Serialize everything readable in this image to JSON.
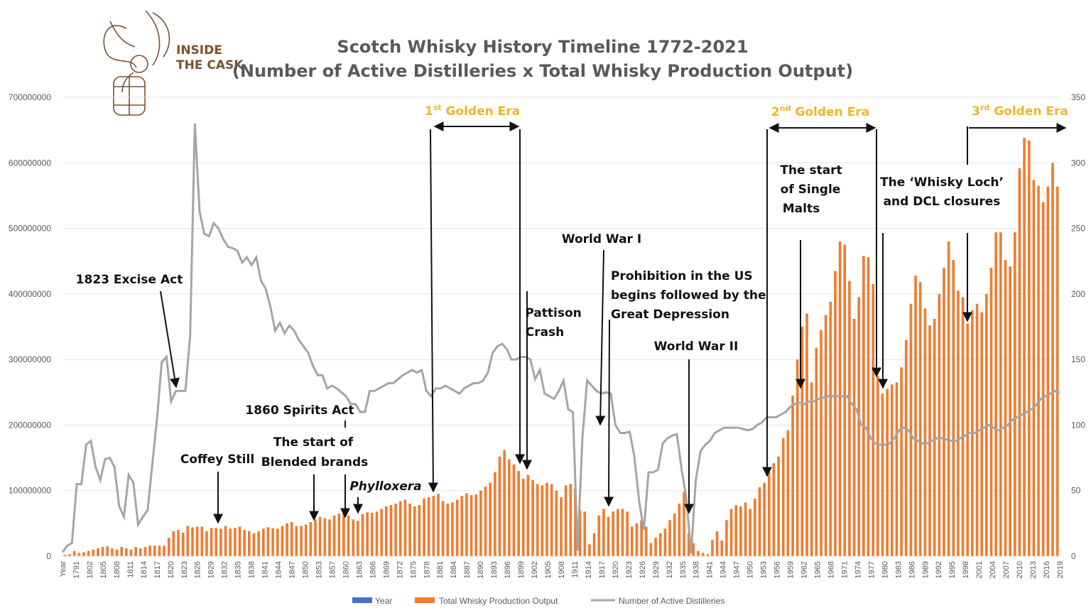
{
  "logo": {
    "line1": "INSIDE",
    "line2": "THE CASK",
    "color": "#7a5230"
  },
  "chart_data": {
    "type": "bar+line",
    "title_line1": "Scotch Whisky History Timeline 1772-2021",
    "title_line2": "(Number of Active Distilleries x Total Whisky Production Output)",
    "y_left": {
      "min": 0,
      "max": 700000000,
      "ticks": [
        "0",
        "100000000",
        "200000000",
        "300000000",
        "400000000",
        "500000000",
        "600000000",
        "700000000"
      ]
    },
    "y_right": {
      "min": 0,
      "max": 350,
      "ticks": [
        "0",
        "50",
        "100",
        "150",
        "200",
        "250",
        "300",
        "350"
      ]
    },
    "x_ticks": [
      "Year",
      "1791",
      "1802",
      "1805",
      "1808",
      "1811",
      "1814",
      "1817",
      "1820",
      "1823",
      "1826",
      "1829",
      "1832",
      "1835",
      "1838",
      "1841",
      "1844",
      "1847",
      "1850",
      "1853",
      "1857",
      "1860",
      "1863",
      "1866",
      "1869",
      "1872",
      "1875",
      "1878",
      "1881",
      "1884",
      "1887",
      "1890",
      "1893",
      "1896",
      "1899",
      "1902",
      "1905",
      "1908",
      "1911",
      "1914",
      "1917",
      "1920",
      "1923",
      "1926",
      "1929",
      "1932",
      "1935",
      "1938",
      "1941",
      "1944",
      "1947",
      "1950",
      "1953",
      "1956",
      "1959",
      "1962",
      "1965",
      "1968",
      "1971",
      "1974",
      "1977",
      "1980",
      "1983",
      "1986",
      "1989",
      "1992",
      "1995",
      "1998",
      "2001",
      "2004",
      "2007",
      "2010",
      "2013",
      "2016",
      "2019"
    ],
    "series": [
      {
        "name": "Year",
        "color": "#4472c4"
      },
      {
        "name": "Total Whisky Production Output",
        "color": "#ed7d31"
      },
      {
        "name": "Number of Active Distilleries",
        "color": "#a5a5a5"
      }
    ],
    "production_output": [
      2000000,
      3000000,
      8000000,
      5000000,
      6000000,
      8000000,
      10000000,
      12000000,
      14000000,
      15000000,
      12000000,
      10000000,
      14000000,
      12000000,
      10000000,
      14000000,
      12000000,
      14000000,
      16000000,
      16000000,
      16000000,
      16000000,
      28000000,
      38000000,
      40000000,
      36000000,
      46000000,
      44000000,
      45000000,
      45000000,
      38000000,
      43000000,
      43000000,
      42000000,
      46000000,
      42000000,
      43000000,
      45000000,
      40000000,
      38000000,
      35000000,
      38000000,
      42000000,
      44000000,
      43000000,
      42000000,
      46000000,
      50000000,
      52000000,
      46000000,
      46000000,
      48000000,
      52000000,
      56000000,
      60000000,
      58000000,
      56000000,
      62000000,
      65000000,
      66000000,
      62000000,
      56000000,
      54000000,
      64000000,
      67000000,
      66000000,
      68000000,
      72000000,
      76000000,
      78000000,
      80000000,
      84000000,
      86000000,
      80000000,
      76000000,
      78000000,
      88000000,
      90000000,
      92000000,
      95000000,
      84000000,
      80000000,
      82000000,
      86000000,
      92000000,
      96000000,
      93000000,
      94000000,
      100000000,
      106000000,
      112000000,
      128000000,
      152000000,
      162000000,
      148000000,
      140000000,
      130000000,
      118000000,
      124000000,
      116000000,
      110000000,
      108000000,
      112000000,
      110000000,
      100000000,
      90000000,
      108000000,
      110000000,
      104000000,
      70000000,
      68000000,
      18000000,
      35000000,
      62000000,
      72000000,
      60000000,
      68000000,
      72000000,
      72000000,
      68000000,
      45000000,
      50000000,
      55000000,
      45000000,
      20000000,
      28000000,
      35000000,
      42000000,
      55000000,
      65000000,
      80000000,
      98000000,
      35000000,
      20000000,
      8000000,
      5000000,
      3000000,
      25000000,
      38000000,
      24000000,
      55000000,
      72000000,
      78000000,
      76000000,
      82000000,
      72000000,
      88000000,
      105000000,
      112000000,
      128000000,
      142000000,
      152000000,
      180000000,
      192000000,
      245000000,
      300000000,
      350000000,
      370000000,
      265000000,
      318000000,
      345000000,
      368000000,
      388000000,
      435000000,
      480000000,
      475000000,
      420000000,
      362000000,
      395000000,
      458000000,
      456000000,
      415000000,
      275000000,
      248000000,
      255000000,
      262000000,
      265000000,
      288000000,
      330000000,
      385000000,
      428000000,
      418000000,
      378000000,
      352000000,
      362000000,
      400000000,
      440000000,
      480000000,
      452000000,
      405000000,
      395000000,
      355000000,
      375000000,
      385000000,
      372000000,
      400000000,
      440000000,
      494000000,
      494000000,
      452000000,
      442000000,
      494000000,
      592000000,
      638000000,
      634000000,
      574000000,
      565000000,
      540000000,
      564000000,
      600000000,
      564000000
    ],
    "active_distilleries": [
      3,
      8,
      10,
      55,
      55,
      85,
      88,
      68,
      58,
      74,
      75,
      68,
      38,
      30,
      62,
      56,
      24,
      30,
      35,
      70,
      105,
      148,
      152,
      118,
      126,
      126,
      126,
      168,
      330,
      263,
      246,
      244,
      254,
      250,
      242,
      236,
      235,
      233,
      224,
      228,
      222,
      228,
      210,
      204,
      190,
      172,
      178,
      170,
      176,
      172,
      165,
      160,
      155,
      145,
      138,
      138,
      128,
      130,
      128,
      125,
      122,
      116,
      116,
      110,
      110,
      126,
      126,
      128,
      130,
      132,
      132,
      135,
      138,
      140,
      142,
      140,
      142,
      126,
      122,
      128,
      128,
      130,
      128,
      126,
      124,
      128,
      130,
      132,
      132,
      134,
      140,
      155,
      160,
      162,
      158,
      150,
      150,
      152,
      152,
      150,
      135,
      142,
      124,
      122,
      120,
      126,
      134,
      112,
      110,
      4,
      90,
      134,
      130,
      126,
      124,
      125,
      124,
      100,
      94,
      94,
      95,
      76,
      42,
      20,
      64,
      64,
      66,
      86,
      90,
      92,
      93,
      66,
      44,
      2,
      58,
      80,
      85,
      88,
      94,
      96,
      98,
      98,
      98,
      98,
      97,
      96,
      97,
      100,
      102,
      106,
      106,
      106,
      108,
      110,
      114,
      116,
      117,
      116,
      118,
      118,
      120,
      121,
      122,
      122,
      122,
      122,
      122,
      116,
      112,
      100,
      98,
      90,
      86,
      85,
      85,
      86,
      90,
      96,
      98,
      96,
      90,
      88,
      86,
      86,
      88,
      90,
      90,
      89,
      88,
      88,
      90,
      92,
      94,
      94,
      96,
      98,
      100,
      98,
      96,
      98,
      100,
      104,
      106,
      108,
      110,
      112,
      115,
      120,
      122,
      124,
      126,
      125
    ]
  },
  "annotations": {
    "excise_1823": "1823 Excise Act",
    "coffey": "Coffey Still",
    "spirits_1860": "1860 Spirits Act",
    "blended_l1": "The start of",
    "blended_l2": "Blended brands",
    "phylloxera": "Phylloxera",
    "pattison_l1": "Pattison",
    "pattison_l2": "Crash",
    "ww1": "World War I",
    "prohibition_l1": "Prohibition in the US",
    "prohibition_l2": "begins followed by the",
    "prohibition_l3": "Great Depression",
    "ww2": "World War II",
    "single_l1": "The start",
    "single_l2": "of Single",
    "single_l3": "Malts",
    "loch_l1": "The ‘Whisky Loch’",
    "loch_l2": "and DCL closures"
  },
  "eras": {
    "first": {
      "ordinal": "1",
      "sup": "st",
      "label": " Golden Era"
    },
    "second": {
      "ordinal": "2",
      "sup": "nd",
      "label": " Golden Era"
    },
    "third": {
      "ordinal": "3",
      "sup": "rd",
      "label": " Golden Era"
    },
    "color": "#f0b429"
  }
}
